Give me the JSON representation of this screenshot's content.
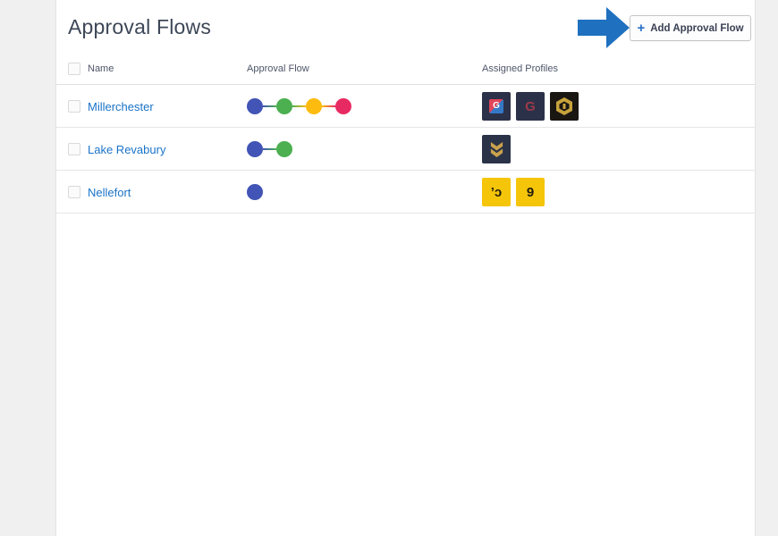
{
  "page": {
    "title": "Approval Flows"
  },
  "toolbar": {
    "plus_glyph": "+",
    "add_label": "Add Approval Flow",
    "plus_color": "#2a6fc8"
  },
  "annotation": {
    "arrow_color": "#1f70bf"
  },
  "table": {
    "headers": [
      "Name",
      "Approval Flow",
      "Assigned Profiles"
    ],
    "rows": [
      {
        "name": "Millerchester",
        "flow_colors": [
          "#4254b5",
          "#4caf50",
          "#fcbb0d",
          "#e82a63"
        ],
        "profiles": [
          {
            "kind": "split-g",
            "char": "G",
            "bg": "#2b3148",
            "fg": "#ffffff",
            "inner_a": "#e0455a",
            "inner_b": "#3578c8"
          },
          {
            "kind": "letter",
            "char": "G",
            "bg": "#2b3148",
            "fg": "#9c3a4a"
          },
          {
            "kind": "hexagon",
            "bg": "#1a1612",
            "fg": "#c7a33c"
          }
        ]
      },
      {
        "name": "Lake Revabury",
        "flow_colors": [
          "#4254b5",
          "#4caf50"
        ],
        "profiles": [
          {
            "kind": "chevrons",
            "bg": "#2b3348",
            "fg": "#c9a24b"
          }
        ]
      },
      {
        "name": "Nellefort",
        "flow_colors": [
          "#4254b5"
        ],
        "profiles": [
          {
            "kind": "letter",
            "char": "’ɔ",
            "bg": "#f5c50a",
            "fg": "#221c0e"
          },
          {
            "kind": "letter",
            "char": "9",
            "bg": "#f5c50a",
            "fg": "#221c0e"
          }
        ]
      }
    ]
  }
}
